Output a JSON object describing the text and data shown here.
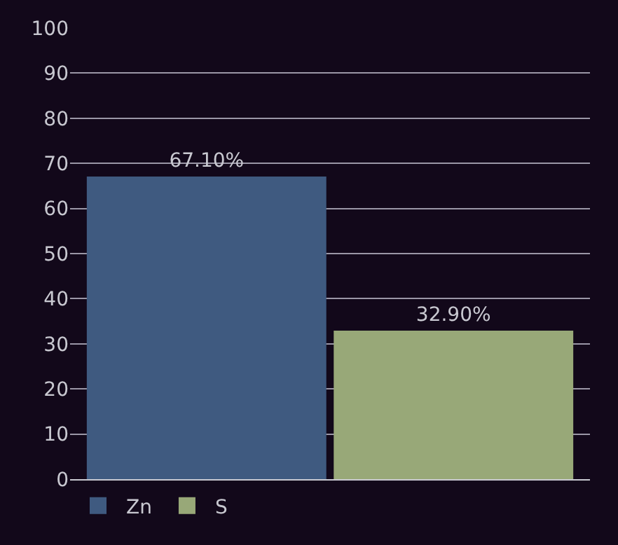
{
  "chart_data": {
    "type": "bar",
    "categories": [
      null
    ],
    "series": [
      {
        "name": "Zn",
        "color": "#3f5a80",
        "values": [
          67.1
        ],
        "value_labels": [
          "67.10%"
        ]
      },
      {
        "name": "S",
        "color": "#98a878",
        "values": [
          32.9
        ],
        "value_labels": [
          "32.90%"
        ]
      }
    ],
    "ylim": [
      0,
      100
    ],
    "yticks": [
      0,
      10,
      20,
      30,
      40,
      50,
      60,
      70,
      80,
      90,
      100
    ],
    "grid": "y",
    "legend": "bottom left"
  }
}
